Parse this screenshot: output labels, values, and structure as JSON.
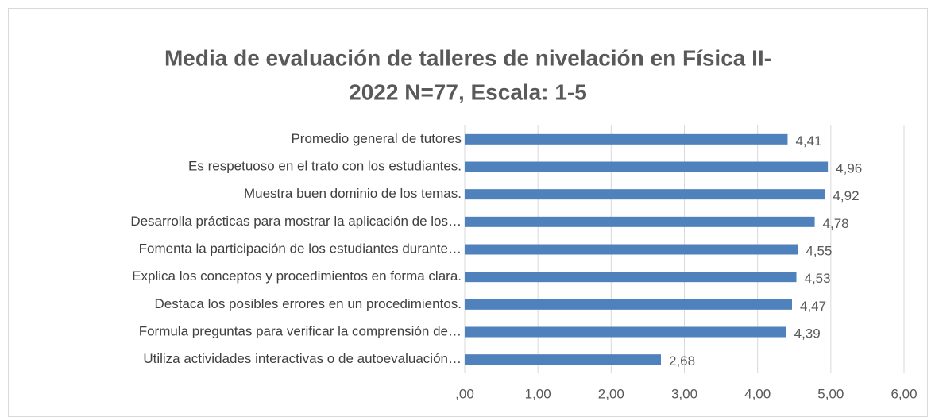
{
  "chart_data": {
    "type": "barh",
    "title": [
      "Media de evaluación de talleres de nivelación en Física II-",
      "2022 N=77, Escala: 1-5"
    ],
    "categories": [
      "Promedio general de tutores",
      "Es respetuoso en el trato con los estudiantes.",
      "Muestra buen dominio de los temas.",
      "Desarrolla prácticas  para mostrar la aplicación de los…",
      "Fomenta la participación de los estudiantes durante…",
      "Explica los conceptos y procedimientos en forma clara.",
      "Destaca los posibles errores en un procedimientos.",
      "Formula preguntas  para verificar la comprensión de…",
      "Utiliza actividades interactivas o de autoevaluación…"
    ],
    "values": [
      4.41,
      4.96,
      4.92,
      4.78,
      4.55,
      4.53,
      4.47,
      4.39,
      2.68
    ],
    "value_labels": [
      "4,41",
      "4,96",
      "4,92",
      "4,78",
      "4,55",
      "4,53",
      "4,47",
      "4,39",
      "2,68"
    ],
    "color": "#4f81bd",
    "xlim": [
      0,
      6
    ],
    "xticks": [
      {
        "value": 0,
        "label": ",00"
      },
      {
        "value": 1,
        "label": "1,00"
      },
      {
        "value": 2,
        "label": "2,00"
      },
      {
        "value": 3,
        "label": "3,00"
      },
      {
        "value": 4,
        "label": "4,00"
      },
      {
        "value": 5,
        "label": "5,00"
      },
      {
        "value": 6,
        "label": "6,00"
      }
    ],
    "grid": true
  }
}
